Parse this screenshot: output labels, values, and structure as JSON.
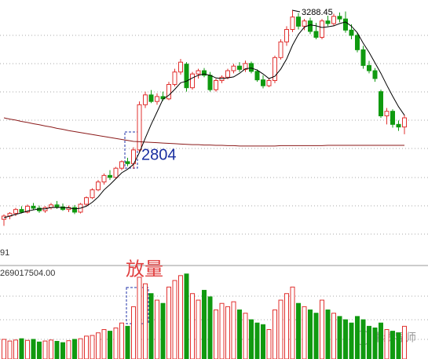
{
  "chart_data": {
    "type": "candlestick",
    "annotations": {
      "high": "3288.45",
      "low": "2804",
      "volume_note": "放量",
      "left_label": "91"
    },
    "watermark": "牛线导师",
    "ylim": [
      2600,
      3320
    ],
    "up_color": "#e0312f",
    "down_color": "#109a10",
    "ma5_color": "#000000",
    "ma_long_color": "#8b1a1a",
    "ohlc": [
      [
        2650,
        2665,
        2630,
        2660
      ],
      [
        2660,
        2672,
        2650,
        2668
      ],
      [
        2668,
        2685,
        2660,
        2680
      ],
      [
        2680,
        2690,
        2668,
        2672
      ],
      [
        2672,
        2695,
        2668,
        2690
      ],
      [
        2690,
        2700,
        2678,
        2684
      ],
      [
        2684,
        2692,
        2670,
        2676
      ],
      [
        2676,
        2690,
        2670,
        2686
      ],
      [
        2686,
        2700,
        2680,
        2694
      ],
      [
        2694,
        2706,
        2682,
        2688
      ],
      [
        2688,
        2698,
        2676,
        2680
      ],
      [
        2680,
        2692,
        2672,
        2686
      ],
      [
        2686,
        2694,
        2666,
        2672
      ],
      [
        2672,
        2700,
        2668,
        2696
      ],
      [
        2696,
        2720,
        2690,
        2716
      ],
      [
        2716,
        2745,
        2712,
        2740
      ],
      [
        2740,
        2770,
        2736,
        2764
      ],
      [
        2764,
        2790,
        2756,
        2784
      ],
      [
        2784,
        2800,
        2770,
        2778
      ],
      [
        2778,
        2810,
        2774,
        2806
      ],
      [
        2806,
        2830,
        2800,
        2826
      ],
      [
        2826,
        2838,
        2812,
        2820
      ],
      [
        2820,
        2870,
        2804,
        2862
      ],
      [
        2862,
        3010,
        2856,
        3000
      ],
      [
        3000,
        3040,
        2990,
        3030
      ],
      [
        3030,
        3045,
        3005,
        3010
      ],
      [
        3010,
        3035,
        3000,
        3025
      ],
      [
        3025,
        3040,
        3012,
        3018
      ],
      [
        3018,
        3070,
        3014,
        3062
      ],
      [
        3062,
        3110,
        3056,
        3100
      ],
      [
        3100,
        3140,
        3092,
        3130
      ],
      [
        3124,
        3130,
        3040,
        3052
      ],
      [
        3052,
        3100,
        3046,
        3094
      ],
      [
        3094,
        3110,
        3080,
        3104
      ],
      [
        3104,
        3112,
        3084,
        3090
      ],
      [
        3090,
        3100,
        3040,
        3046
      ],
      [
        3046,
        3080,
        3040,
        3074
      ],
      [
        3074,
        3090,
        3066,
        3084
      ],
      [
        3084,
        3110,
        3078,
        3104
      ],
      [
        3104,
        3125,
        3096,
        3118
      ],
      [
        3118,
        3130,
        3100,
        3108
      ],
      [
        3108,
        3135,
        3100,
        3126
      ],
      [
        3126,
        3132,
        3096,
        3102
      ],
      [
        3102,
        3108,
        3070,
        3076
      ],
      [
        3076,
        3090,
        3050,
        3058
      ],
      [
        3058,
        3080,
        3054,
        3074
      ],
      [
        3074,
        3150,
        3066,
        3144
      ],
      [
        3144,
        3200,
        3138,
        3192
      ],
      [
        3192,
        3240,
        3180,
        3230
      ],
      [
        3230,
        3288.45,
        3222,
        3268
      ],
      [
        3268,
        3280,
        3230,
        3240
      ],
      [
        3240,
        3262,
        3228,
        3256
      ],
      [
        3256,
        3266,
        3216,
        3224
      ],
      [
        3224,
        3250,
        3200,
        3206
      ],
      [
        3206,
        3262,
        3200,
        3256
      ],
      [
        3256,
        3272,
        3240,
        3248
      ],
      [
        3248,
        3278,
        3240,
        3270
      ],
      [
        3270,
        3282,
        3252,
        3262
      ],
      [
        3262,
        3285,
        3220,
        3228
      ],
      [
        3228,
        3246,
        3200,
        3212
      ],
      [
        3212,
        3220,
        3160,
        3168
      ],
      [
        3168,
        3180,
        3110,
        3120
      ],
      [
        3120,
        3134,
        3096,
        3104
      ],
      [
        3104,
        3112,
        3070,
        3080
      ],
      [
        3040,
        3046,
        2960,
        2966
      ],
      [
        2966,
        2990,
        2940,
        2980
      ],
      [
        2980,
        2986,
        2930,
        2940
      ],
      [
        2940,
        2952,
        2920,
        2932
      ],
      [
        2932,
        2970,
        2910,
        2960
      ]
    ],
    "ma5": [
      2655,
      2660,
      2665,
      2670,
      2675,
      2679,
      2682,
      2682,
      2686,
      2686,
      2686,
      2685,
      2682,
      2684,
      2690,
      2702,
      2718,
      2740,
      2756,
      2774,
      2792,
      2803,
      2818,
      2854,
      2898,
      2940,
      2978,
      3017,
      3029,
      3047,
      3067,
      3072,
      3082,
      3090,
      3094,
      3090,
      3082,
      3080,
      3082,
      3085,
      3096,
      3110,
      3112,
      3106,
      3094,
      3080,
      3087,
      3109,
      3140,
      3182,
      3215,
      3237,
      3244,
      3241,
      3236,
      3238,
      3241,
      3248,
      3253,
      3240,
      3220,
      3188,
      3160,
      3128,
      3096,
      3060,
      3026,
      2994,
      2968
    ],
    "ma_long": [
      2960,
      2956,
      2953,
      2949,
      2946,
      2942,
      2939,
      2935,
      2932,
      2928,
      2925,
      2921,
      2918,
      2915,
      2912,
      2909,
      2906,
      2903,
      2900,
      2897,
      2894,
      2891,
      2888,
      2887,
      2886,
      2885,
      2884,
      2883,
      2882,
      2881,
      2880,
      2879,
      2878,
      2878,
      2877,
      2877,
      2876,
      2876,
      2875,
      2875,
      2874,
      2874,
      2874,
      2874,
      2874,
      2874,
      2874,
      2875,
      2875,
      2875,
      2875,
      2875,
      2875,
      2875,
      2875,
      2876,
      2876,
      2876,
      2876,
      2876,
      2876,
      2876,
      2876,
      2876,
      2876,
      2876,
      2876,
      2876,
      2876
    ],
    "volume": [
      60000000,
      55000000,
      58000000,
      62000000,
      57000000,
      60000000,
      52000000,
      55000000,
      58000000,
      54000000,
      50000000,
      56000000,
      60000000,
      62000000,
      70000000,
      72000000,
      80000000,
      90000000,
      85000000,
      95000000,
      110000000,
      100000000,
      160000000,
      250000000,
      230000000,
      200000000,
      180000000,
      170000000,
      220000000,
      240000000,
      255000000,
      260000000,
      200000000,
      180000000,
      210000000,
      190000000,
      150000000,
      170000000,
      160000000,
      175000000,
      150000000,
      140000000,
      120000000,
      110000000,
      105000000,
      90000000,
      150000000,
      180000000,
      200000000,
      220000000,
      170000000,
      160000000,
      150000000,
      140000000,
      180000000,
      150000000,
      140000000,
      130000000,
      120000000,
      110000000,
      130000000,
      120000000,
      100000000,
      95000000,
      110000000,
      90000000,
      85000000,
      80000000,
      100000000
    ],
    "vol_ylim": [
      0,
      269017504
    ],
    "vol_yticks": [
      {
        "value": 269017504,
        "label": "269017504.00"
      }
    ]
  }
}
